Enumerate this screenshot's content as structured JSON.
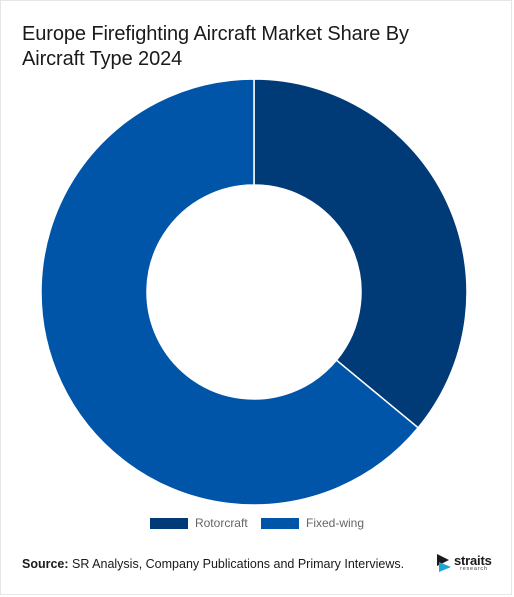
{
  "chart_data": {
    "type": "pie",
    "donut": true,
    "title": "Europe Firefighting Aircraft Market Share By Aircraft Type 2024",
    "categories": [
      "Rotorcraft",
      "Fixed-wing"
    ],
    "values": [
      36,
      64
    ],
    "unit": "%",
    "colors": [
      "#003a77",
      "#0055a8"
    ],
    "legend_position": "bottom",
    "start_angle": "12 o'clock",
    "direction": "clockwise"
  },
  "source": {
    "label": "Source:",
    "text": " SR Analysis, Company Publications and Primary Interviews."
  },
  "logo": {
    "word": "straits",
    "sub": "research",
    "icon": "straits-logo-icon"
  }
}
